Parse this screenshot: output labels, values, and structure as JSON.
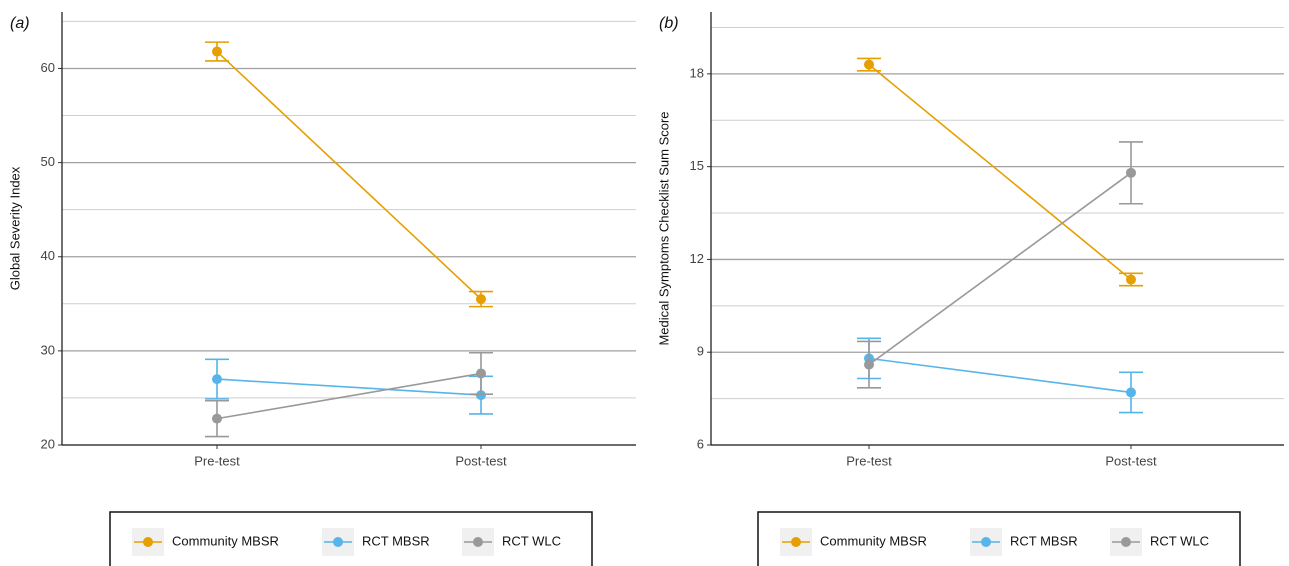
{
  "chart_data": [
    {
      "type": "line",
      "panel": "(a)",
      "y_label": "Global Severity Index",
      "categories": [
        "Pre-test",
        "Post-test"
      ],
      "ylim": [
        20,
        66
      ],
      "yticks": [
        20,
        30,
        40,
        50,
        60
      ],
      "minor_yticks": [
        25,
        35,
        45,
        55,
        65
      ],
      "grid": true,
      "series": [
        {
          "name": "Community MBSR",
          "color": "#E69F00",
          "values": [
            61.8,
            35.5
          ],
          "errors": [
            1.0,
            0.8
          ]
        },
        {
          "name": "RCT MBSR",
          "color": "#56B4E9",
          "values": [
            27.0,
            25.3
          ],
          "errors": [
            2.1,
            2.0
          ]
        },
        {
          "name": "RCT WLC",
          "color": "#999999",
          "values": [
            22.8,
            27.6
          ],
          "errors": [
            1.9,
            2.2
          ]
        }
      ]
    },
    {
      "type": "line",
      "panel": "(b)",
      "y_label": "Medical Symptoms Checklist Sum Score",
      "categories": [
        "Pre-test",
        "Post-test"
      ],
      "ylim": [
        6,
        20
      ],
      "yticks": [
        6,
        9,
        12,
        15,
        18
      ],
      "minor_yticks": [
        7.5,
        10.5,
        13.5,
        16.5,
        19.5
      ],
      "grid": true,
      "series": [
        {
          "name": "Community MBSR",
          "color": "#E69F00",
          "values": [
            18.3,
            11.35
          ],
          "errors": [
            0.2,
            0.2
          ]
        },
        {
          "name": "RCT MBSR",
          "color": "#56B4E9",
          "values": [
            8.8,
            7.7
          ],
          "errors": [
            0.65,
            0.65
          ]
        },
        {
          "name": "RCT WLC",
          "color": "#999999",
          "values": [
            8.6,
            14.8
          ],
          "errors": [
            0.75,
            1.0
          ]
        }
      ]
    }
  ]
}
